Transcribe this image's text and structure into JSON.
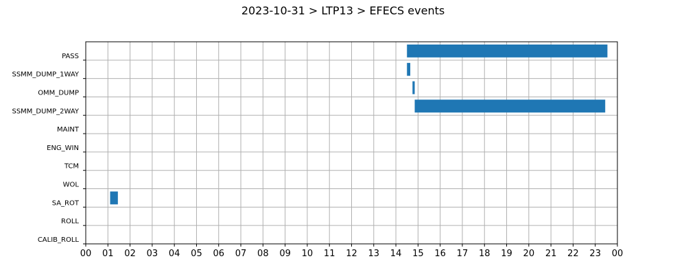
{
  "chart_data": {
    "type": "bar",
    "orientation": "horizontal",
    "title": "2023-10-31 > LTP13 > EFECS events",
    "xlabel": "",
    "ylabel": "",
    "xlim": [
      0,
      24
    ],
    "x_tick_labels": [
      "00",
      "01",
      "02",
      "03",
      "04",
      "05",
      "06",
      "07",
      "08",
      "09",
      "10",
      "11",
      "12",
      "13",
      "14",
      "15",
      "16",
      "17",
      "18",
      "19",
      "20",
      "21",
      "22",
      "23",
      "00"
    ],
    "categories": [
      "PASS",
      "SSMM_DUMP_1WAY",
      "OMM_DUMP",
      "SSMM_DUMP_2WAY",
      "MAINT",
      "ENG_WIN",
      "TCM",
      "WOL",
      "SA_ROT",
      "ROLL",
      "CALIB_ROLL"
    ],
    "events": [
      {
        "category": "PASS",
        "start": 14.5,
        "end": 23.55
      },
      {
        "category": "SSMM_DUMP_1WAY",
        "start": 14.5,
        "end": 14.65
      },
      {
        "category": "OMM_DUMP",
        "start": 14.75,
        "end": 14.85
      },
      {
        "category": "SSMM_DUMP_2WAY",
        "start": 14.85,
        "end": 23.45
      },
      {
        "category": "SA_ROT",
        "start": 1.1,
        "end": 1.45
      }
    ],
    "grid": true,
    "bar_color": "#1f77b4"
  }
}
